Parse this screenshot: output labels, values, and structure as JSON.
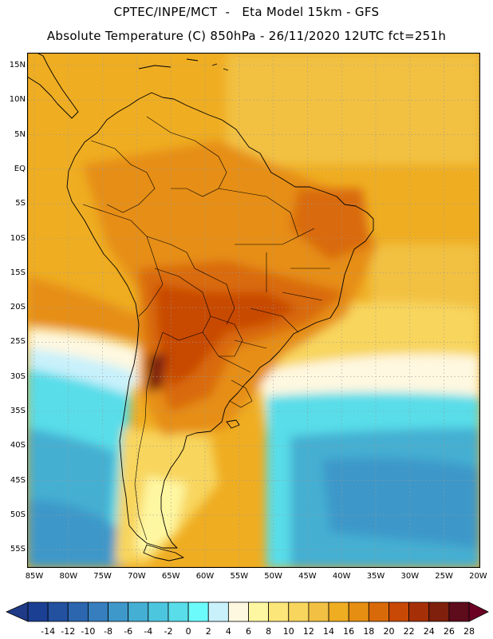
{
  "header": {
    "line1": "CPTEC/INPE/MCT  -   Eta Model 15km - GFS",
    "line2": "Absolute Temperature (C) 850hPa - 26/11/2020 12UTC fct=251h"
  },
  "map": {
    "region": "South America",
    "variable": "Absolute Temperature (C) 850hPa",
    "lat_labels": [
      "15N",
      "10N",
      "5N",
      "EQ",
      "5S",
      "10S",
      "15S",
      "20S",
      "25S",
      "30S",
      "35S",
      "40S",
      "45S",
      "50S",
      "55S"
    ],
    "lon_labels": [
      "85W",
      "80W",
      "75W",
      "70W",
      "65W",
      "60W",
      "55W",
      "50W",
      "45W",
      "40W",
      "35W",
      "30W",
      "25W",
      "20W"
    ],
    "lat_range": [
      -58,
      16
    ],
    "lon_range": [
      -86,
      -20
    ],
    "grid": "dotted"
  },
  "colorbar": {
    "labels": [
      "-14",
      "-12",
      "-10",
      "-8",
      "-6",
      "-4",
      "-2",
      "0",
      "2",
      "4",
      "6",
      "8",
      "10",
      "12",
      "14",
      "16",
      "18",
      "20",
      "22",
      "24",
      "26",
      "28"
    ],
    "colors": [
      "#1b3f92",
      "#23509f",
      "#2c66ae",
      "#367ebd",
      "#3e98c9",
      "#44afd2",
      "#4cc6df",
      "#58dde9",
      "#6cfbfb",
      "#c8f1fb",
      "#fef8e0",
      "#fef7a2",
      "#fce67a",
      "#f8d55d",
      "#f2c143",
      "#efad22",
      "#e68e12",
      "#d96a0a",
      "#c84806",
      "#a53008",
      "#7e200c",
      "#5e0b1c"
    ],
    "under_color": "#1f3b87",
    "over_color": "#6b0224"
  }
}
